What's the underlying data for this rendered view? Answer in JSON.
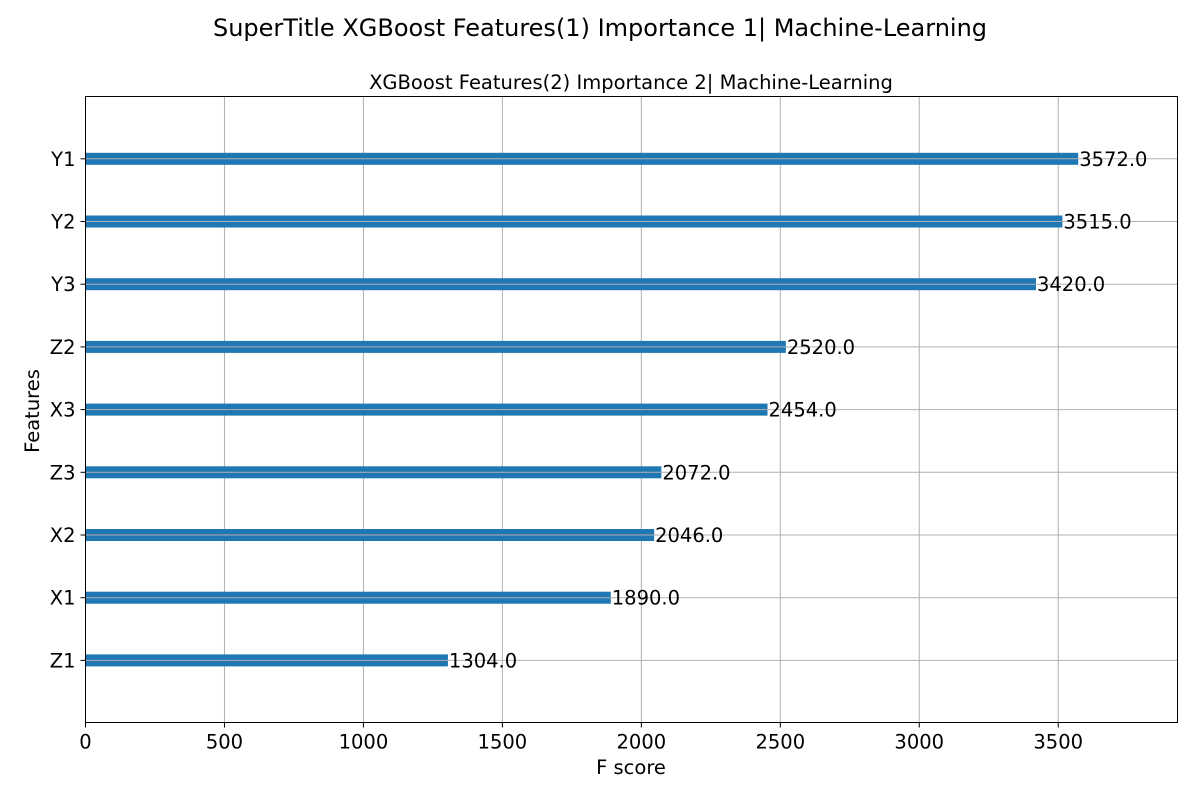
{
  "suptitle": "SuperTitle XGBoost Features(1) Importance 1| Machine-Learning",
  "chart_data": {
    "type": "bar",
    "orientation": "horizontal",
    "title": "XGBoost Features(2) Importance 2| Machine-Learning",
    "xlabel": "F score",
    "ylabel": "Features",
    "categories": [
      "Y1",
      "Y2",
      "Y3",
      "Z2",
      "X3",
      "Z3",
      "X2",
      "X1",
      "Z1"
    ],
    "values": [
      3572.0,
      3515.0,
      3420.0,
      2520.0,
      2454.0,
      2072.0,
      2046.0,
      1890.0,
      1304.0
    ],
    "value_labels": [
      "3572.0",
      "3515.0",
      "3420.0",
      "2520.0",
      "2454.0",
      "2072.0",
      "2046.0",
      "1890.0",
      "1304.0"
    ],
    "xlim": [
      0,
      3929.2
    ],
    "xticks": [
      0,
      500,
      1000,
      1500,
      2000,
      2500,
      3000,
      3500
    ],
    "xtick_labels": [
      "0",
      "500",
      "1000",
      "1500",
      "2000",
      "2500",
      "3000",
      "3500"
    ],
    "grid": true,
    "bar_color": "#1f77b4",
    "grid_color": "#b0b0b0"
  }
}
